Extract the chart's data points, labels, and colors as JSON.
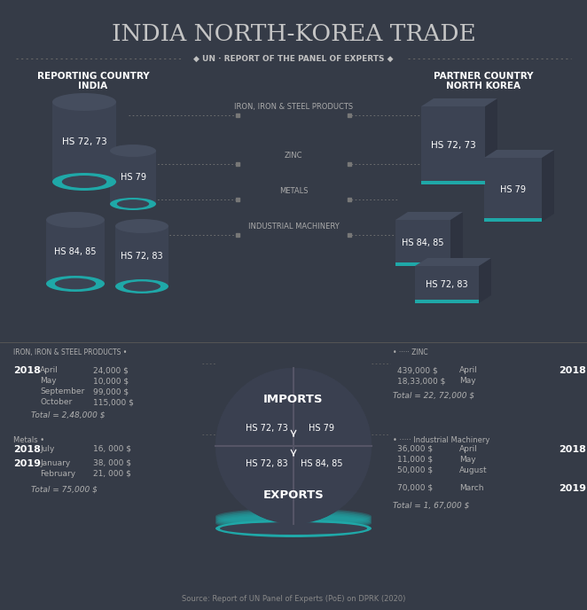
{
  "bg_color": "#353b47",
  "title": "INDIA NORTH-KOREA TRADE",
  "subtitle": "UN · REPORT OF THE PANEL OF EXPERTS",
  "teal": "#1fa8a8",
  "white": "#ffffff",
  "light_gray": "#b0b0b0",
  "left_label1": "REPORTING COUNTRY",
  "left_label2": "INDIA",
  "right_label1": "PARTNER COUNTRY",
  "right_label2": "NORTH KOREA",
  "trade_labels": [
    "IRON, IRON & STEEL PRODUCTS",
    "ZINC",
    "METALS",
    "INDUSTRIAL MACHINERY"
  ],
  "circle_labels_top_left": "HS 72, 73",
  "circle_labels_top_right": "HS 79",
  "circle_labels_bot_left": "HS 72, 83",
  "circle_labels_bot_right": "HS 84, 85",
  "imports_label": "IMPORTS",
  "exports_label": "EXPORTS",
  "iron_title": "IRON, IRON & STEEL PRODUCTS",
  "iron_year": "2018",
  "iron_rows": [
    [
      "April",
      "24,000 $"
    ],
    [
      "May",
      "10,000 $"
    ],
    [
      "September",
      "99,000 $"
    ],
    [
      "October",
      "115,000 $"
    ]
  ],
  "iron_total": "Total = 2,48,000 $",
  "zinc_title": "ZINC",
  "zinc_year": "2018",
  "zinc_rows": [
    [
      "April",
      "439,000 $"
    ],
    [
      "May",
      "18,33,000 $"
    ]
  ],
  "zinc_total": "Total = 22, 72,000 $",
  "metals_title": "Metals",
  "metals_blocks": [
    {
      "year": "2018",
      "rows": [
        [
          "July",
          "16, 000 $"
        ]
      ]
    },
    {
      "year": "2019",
      "rows": [
        [
          "January",
          "38, 000 $"
        ],
        [
          "February",
          "21, 000 $"
        ]
      ]
    }
  ],
  "metals_total": "Total = 75,000 $",
  "machinery_title": "Industrial Machinery",
  "machinery_blocks": [
    {
      "year": "2018",
      "rows": [
        [
          "April",
          "36,000 $"
        ],
        [
          "May",
          "11,000 $"
        ],
        [
          "August",
          "50,000 $"
        ]
      ]
    },
    {
      "year": "2019",
      "rows": [
        [
          "March",
          "70,000 $"
        ]
      ]
    }
  ],
  "machinery_total": "Total = 1, 67,000 $",
  "source": "Source: Report of UN Panel of Experts (PoE) on DPRK (2020)",
  "cyl_body": "#3c4353",
  "cyl_top": "#454d5e",
  "cyl_dark": "#2e3340",
  "box_body": "#3c4353",
  "box_side": "#2e3340",
  "box_top": "#454d5e"
}
